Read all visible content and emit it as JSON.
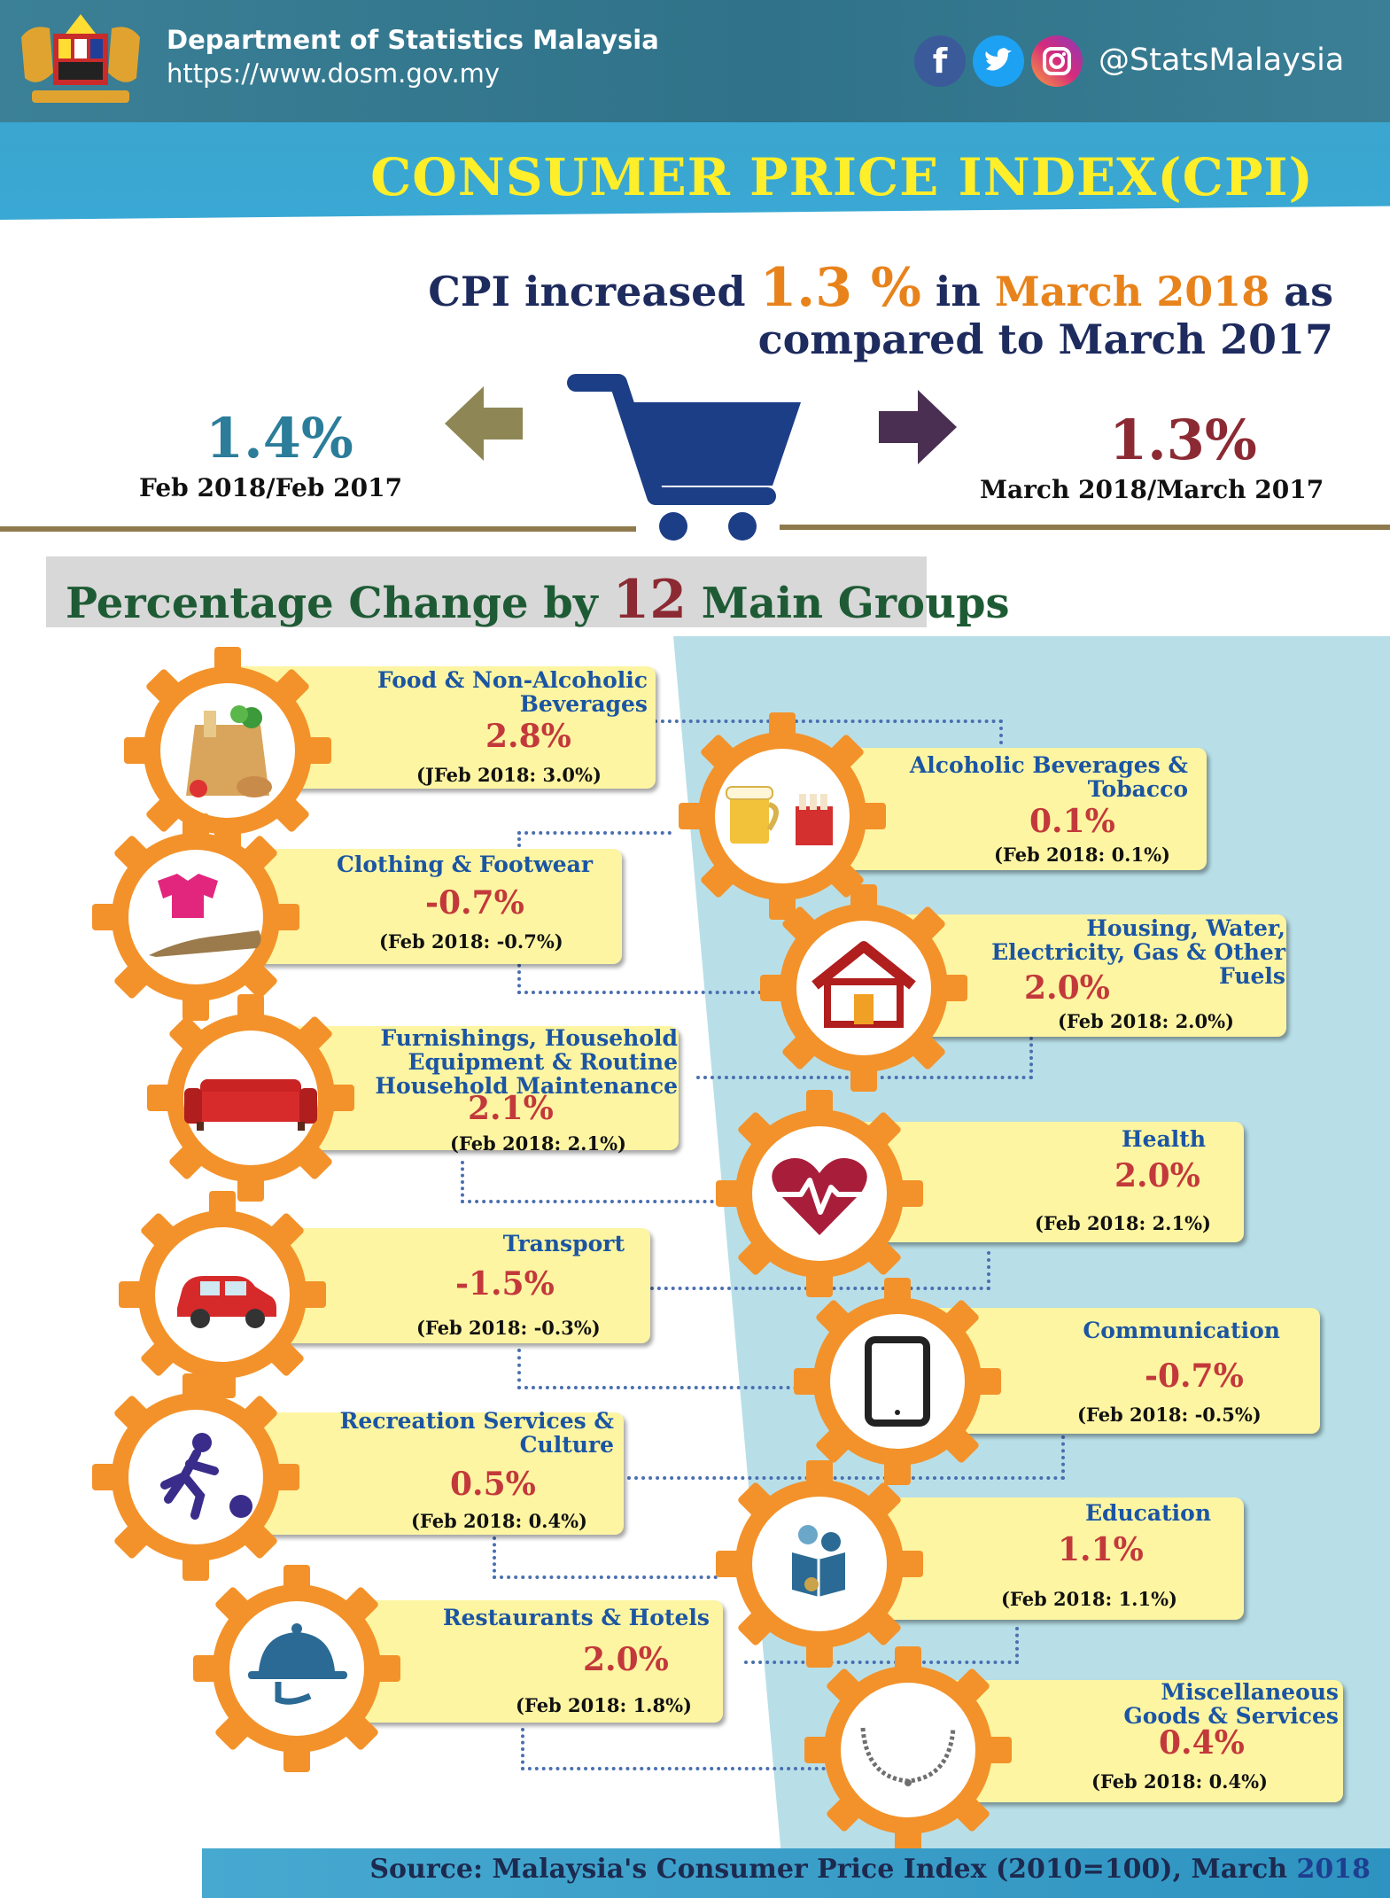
{
  "header": {
    "org": "Department of Statistics Malaysia",
    "url": "https://www.dosm.gov.my",
    "handle": "@StatsMalaysia",
    "social_icons": [
      "facebook-icon",
      "twitter-icon",
      "instagram-icon"
    ]
  },
  "title": "CONSUMER PRICE INDEX(CPI)",
  "headline": {
    "part1": "CPI increased",
    "value": "1.3 %",
    "part2": "in",
    "month": "March 2018",
    "part3": "as",
    "line2": "compared  to March  2017"
  },
  "comparison": {
    "left_value": "1.4%",
    "left_caption": "Feb 2018/Feb 2017",
    "right_value": "1.3%",
    "right_caption": "March 2018/March 2017"
  },
  "section": {
    "title_pre": "Percentage Change by",
    "title_num": "12",
    "title_post": "Main Groups"
  },
  "groups": [
    {
      "name_l1": "Food & Non-Alcoholic",
      "name_l2": "Beverages",
      "name_l3": "",
      "value": "2.8%",
      "feb": "(JFeb 2018: 3.0%)",
      "icon": "grocery-bag-icon"
    },
    {
      "name_l1": "Alcoholic Beverages &",
      "name_l2": "Tobacco",
      "name_l3": "",
      "value": "0.1%",
      "feb": "(Feb 2018: 0.1%)",
      "icon": "beer-cigarettes-icon"
    },
    {
      "name_l1": "Clothing & Footwear",
      "name_l2": "",
      "name_l3": "",
      "value": "-0.7%",
      "feb": "(Feb 2018: -0.7%)",
      "icon": "shirt-shoe-icon"
    },
    {
      "name_l1": "Housing, Water,",
      "name_l2": "Electricity, Gas & Other",
      "name_l3": "Fuels",
      "value": "2.0%",
      "feb": "(Feb 2018: 2.0%)",
      "icon": "house-icon"
    },
    {
      "name_l1": "Furnishings, Household",
      "name_l2": "Equipment & Routine",
      "name_l3": "Household Maintenance",
      "value": "2.1%",
      "feb": "(Feb 2018: 2.1%)",
      "icon": "sofa-icon"
    },
    {
      "name_l1": "Health",
      "name_l2": "",
      "name_l3": "",
      "value": "2.0%",
      "feb": "(Feb 2018: 2.1%)",
      "icon": "heartbeat-icon"
    },
    {
      "name_l1": "Transport",
      "name_l2": "",
      "name_l3": "",
      "value": "-1.5%",
      "feb": "(Feb 2018: -0.3%)",
      "icon": "car-icon"
    },
    {
      "name_l1": "Communication",
      "name_l2": "",
      "name_l3": "",
      "value": "-0.7%",
      "feb": "(Feb 2018: -0.5%)",
      "icon": "tablet-icon"
    },
    {
      "name_l1": "Recreation Services &",
      "name_l2": "Culture",
      "name_l3": "",
      "value": "0.5%",
      "feb": "(Feb 2018: 0.4%)",
      "icon": "bowling-icon"
    },
    {
      "name_l1": "Education",
      "name_l2": "",
      "name_l3": "",
      "value": "1.1%",
      "feb": "(Feb 2018: 1.1%)",
      "icon": "students-reading-icon"
    },
    {
      "name_l1": "Restaurants & Hotels",
      "name_l2": "",
      "name_l3": "",
      "value": "2.0%",
      "feb": "(Feb 2018: 1.8%)",
      "icon": "cloche-icon"
    },
    {
      "name_l1": "Miscellaneous",
      "name_l2": "Goods & Services",
      "name_l3": "",
      "value": "0.4%",
      "feb": "(Feb 2018: 0.4%)",
      "icon": "necklace-icon"
    }
  ],
  "footer": {
    "source": "Source: Malaysia's Consumer Price Index (2010=100), March",
    "year": "2018"
  }
}
